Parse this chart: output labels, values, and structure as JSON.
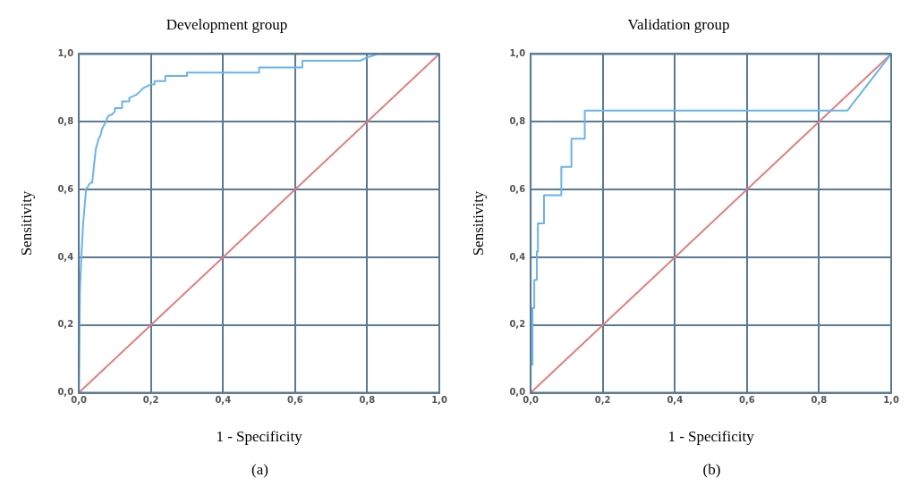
{
  "chart_data": [
    {
      "type": "line",
      "title": "Development group",
      "xlabel": "1 - Specificity",
      "ylabel": "Sensitivity",
      "annotations": [
        "(a)"
      ],
      "grid": true,
      "legend": false,
      "marker": "none",
      "line_style": "solid",
      "xlim": [
        0,
        1
      ],
      "ylim": [
        0,
        1
      ],
      "xticks": [
        {
          "value": 0,
          "label": "0,0"
        },
        {
          "value": 0.2,
          "label": "0,2"
        },
        {
          "value": 0.4,
          "label": "0,4"
        },
        {
          "value": 0.6,
          "label": "0,6"
        },
        {
          "value": 0.8,
          "label": "0,8"
        },
        {
          "value": 1,
          "label": "1,0"
        }
      ],
      "yticks": [
        {
          "value": 0,
          "label": "0,0"
        },
        {
          "value": 0.2,
          "label": "0,2"
        },
        {
          "value": 0.4,
          "label": "0,4"
        },
        {
          "value": 0.6,
          "label": "0,6"
        },
        {
          "value": 0.8,
          "label": "0,8"
        },
        {
          "value": 1,
          "label": "1,0"
        }
      ],
      "series": [
        {
          "color": "#6ab4e8",
          "x": [
            0,
            0.003,
            0.007,
            0.012,
            0.016,
            0.02,
            0.026,
            0.032,
            0.037,
            0.04,
            0.042,
            0.045,
            0.047,
            0.05,
            0.055,
            0.06,
            0.065,
            0.07,
            0.075,
            0.078,
            0.085,
            0.09,
            0.1,
            0.1,
            0.12,
            0.12,
            0.14,
            0.14,
            0.16,
            0.17,
            0.18,
            0.2,
            0.21,
            0.21,
            0.24,
            0.24,
            0.3,
            0.3,
            0.5,
            0.5,
            0.62,
            0.62,
            0.78,
            0.8,
            0.83,
            1
          ],
          "values": [
            0,
            0.3,
            0.4,
            0.5,
            0.55,
            0.6,
            0.61,
            0.62,
            0.62,
            0.65,
            0.67,
            0.7,
            0.72,
            0.73,
            0.75,
            0.76,
            0.78,
            0.79,
            0.8,
            0.81,
            0.82,
            0.82,
            0.83,
            0.84,
            0.84,
            0.86,
            0.86,
            0.87,
            0.88,
            0.89,
            0.9,
            0.91,
            0.91,
            0.92,
            0.92,
            0.935,
            0.935,
            0.945,
            0.945,
            0.96,
            0.96,
            0.98,
            0.98,
            0.99,
            1,
            1
          ]
        },
        {
          "color": "#e08080",
          "x": [
            0,
            1
          ],
          "values": [
            0,
            1
          ]
        }
      ]
    },
    {
      "type": "line",
      "title": "Validation group",
      "xlabel": "1 - Specificity",
      "ylabel": "Sensitivity",
      "annotations": [
        "(b)"
      ],
      "grid": true,
      "legend": false,
      "marker": "none",
      "line_style": "solid",
      "xlim": [
        0,
        1
      ],
      "ylim": [
        0,
        1
      ],
      "xticks": [
        {
          "value": 0,
          "label": "0,0"
        },
        {
          "value": 0.2,
          "label": "0,2"
        },
        {
          "value": 0.4,
          "label": "0,4"
        },
        {
          "value": 0.6,
          "label": "0,6"
        },
        {
          "value": 0.8,
          "label": "0,8"
        },
        {
          "value": 1,
          "label": "1,0"
        }
      ],
      "yticks": [
        {
          "value": 0,
          "label": "0,0"
        },
        {
          "value": 0.2,
          "label": "0,2"
        },
        {
          "value": 0.4,
          "label": "0,4"
        },
        {
          "value": 0.6,
          "label": "0,6"
        },
        {
          "value": 0.8,
          "label": "0,8"
        },
        {
          "value": 1,
          "label": "1,0"
        }
      ],
      "series": [
        {
          "color": "#6ab4e8",
          "x": [
            0.005,
            0.005,
            0.01,
            0.01,
            0.017,
            0.017,
            0.02,
            0.02,
            0.037,
            0.037,
            0.085,
            0.085,
            0.113,
            0.113,
            0.15,
            0.15,
            0.879,
            1
          ],
          "values": [
            0.08,
            0.25,
            0.25,
            0.333,
            0.333,
            0.417,
            0.417,
            0.5,
            0.5,
            0.583,
            0.583,
            0.667,
            0.667,
            0.75,
            0.75,
            0.833,
            0.833,
            1
          ]
        },
        {
          "color": "#e08080",
          "x": [
            0,
            1
          ],
          "values": [
            0,
            1
          ]
        }
      ]
    }
  ]
}
